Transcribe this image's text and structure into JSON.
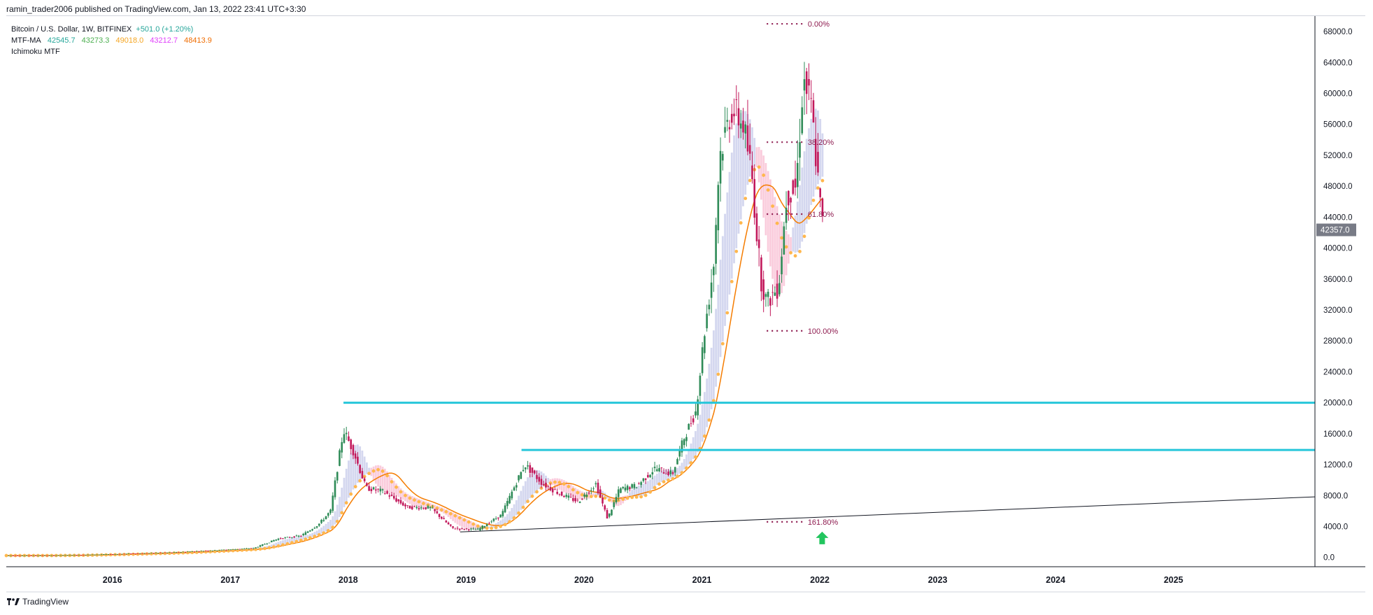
{
  "publish_line": "ramin_trader2006 published on TradingView.com, Jan 13, 2022 23:41 UTC+3:30",
  "legend": {
    "symbol": "Bitcoin / U.S. Dollar, 1W, BITFINEX",
    "change": "+501.0 (+1.20%)",
    "mtf_label": "MTF-MA",
    "mtf_values": [
      "42545.7",
      "43273.3",
      "49018.0",
      "43212.7",
      "48413.9"
    ],
    "mtf_colors": [
      "#26a69a",
      "#4caf50",
      "#f5a623",
      "#e040fb",
      "#ef6c00"
    ],
    "ichimoku_label": "Ichimoku MTF"
  },
  "footer": {
    "brand": "TradingView"
  },
  "colors": {
    "up": "#2e8b57",
    "down": "#c2185b",
    "ma_orange": "#f57c00",
    "ma_dots": "#ffb74d",
    "cloud_blue": "#c5cae9",
    "cloud_pink": "#f8bbd0",
    "hline": "#26c6da",
    "fib": "#8e1b4f",
    "price_tag": "#787b86",
    "arrow": "#22c55e"
  },
  "chart_data": {
    "type": "line",
    "title": "Bitcoin / U.S. Dollar, 1W, BITFINEX",
    "xlabel": "",
    "ylabel": "",
    "ylim": [
      -1200,
      70000
    ],
    "xlim": [
      2015.1,
      2026.2
    ],
    "y_ticks": [
      0,
      4000,
      8000,
      12000,
      16000,
      20000,
      24000,
      28000,
      32000,
      36000,
      40000,
      44000,
      48000,
      52000,
      56000,
      60000,
      64000,
      68000
    ],
    "y_tick_labels": [
      "0.0",
      "4000.0",
      "8000.0",
      "12000.0",
      "16000.0",
      "20000.0",
      "24000.0",
      "28000.0",
      "32000.0",
      "36000.0",
      "40000.0",
      "44000.0",
      "48000.0",
      "52000.0",
      "56000.0",
      "60000.0",
      "64000.0",
      "68000.0"
    ],
    "x_ticks": [
      2016,
      2017,
      2018,
      2019,
      2020,
      2021,
      2022,
      2023,
      2024,
      2025
    ],
    "x_tick_labels": [
      "2016",
      "2017",
      "2018",
      "2019",
      "2020",
      "2021",
      "2022",
      "2023",
      "2024",
      "2025"
    ],
    "last_price": 42357.0,
    "last_price_label": "42357.0",
    "series": [
      {
        "name": "",
        "values_x": [
          2015.1,
          2015.5,
          2016.0,
          2016.5,
          2016.9,
          2017.2,
          2017.4,
          2017.6,
          2017.75,
          2017.85,
          2017.96,
          2018.05,
          2018.15,
          2018.3,
          2018.5,
          2018.7,
          2018.88,
          2018.95,
          2019.1,
          2019.3,
          2019.45,
          2019.5,
          2019.65,
          2019.8,
          2019.95,
          2020.1,
          2020.2,
          2020.3,
          2020.45,
          2020.6,
          2020.75,
          2020.85,
          2020.95,
          2021.02,
          2021.1,
          2021.15,
          2021.25,
          2021.35,
          2021.42,
          2021.5,
          2021.55,
          2021.65,
          2021.72,
          2021.8,
          2021.86,
          2021.93,
          2022.0,
          2022.03
        ],
        "values_y": [
          250,
          260,
          420,
          650,
          950,
          1200,
          2400,
          2800,
          4300,
          6000,
          16500,
          13500,
          9000,
          8500,
          6500,
          6400,
          3800,
          3700,
          3600,
          5500,
          10500,
          12000,
          9500,
          8200,
          7200,
          9500,
          5000,
          8800,
          9300,
          11500,
          10800,
          15500,
          19000,
          29000,
          38000,
          52000,
          58000,
          56000,
          50000,
          36000,
          33000,
          35000,
          47000,
          48000,
          62000,
          58000,
          46000,
          42357
        ]
      }
    ],
    "horizontal_levels": [
      {
        "value": 20000,
        "start_x": 2017.96
      },
      {
        "value": 13900,
        "start_x": 2019.47
      }
    ],
    "trendline": {
      "x": [
        2018.95,
        2025.5
      ],
      "y": [
        3300,
        7400
      ]
    },
    "fib_levels": [
      {
        "label": "0.00%",
        "value": 69000
      },
      {
        "label": "38.20%",
        "value": 53700
      },
      {
        "label": "61.80%",
        "value": 44400
      },
      {
        "label": "100.00%",
        "value": 29300
      },
      {
        "label": "161.80%",
        "value": 4600
      }
    ],
    "grid": false,
    "legend_position": "top-left"
  }
}
